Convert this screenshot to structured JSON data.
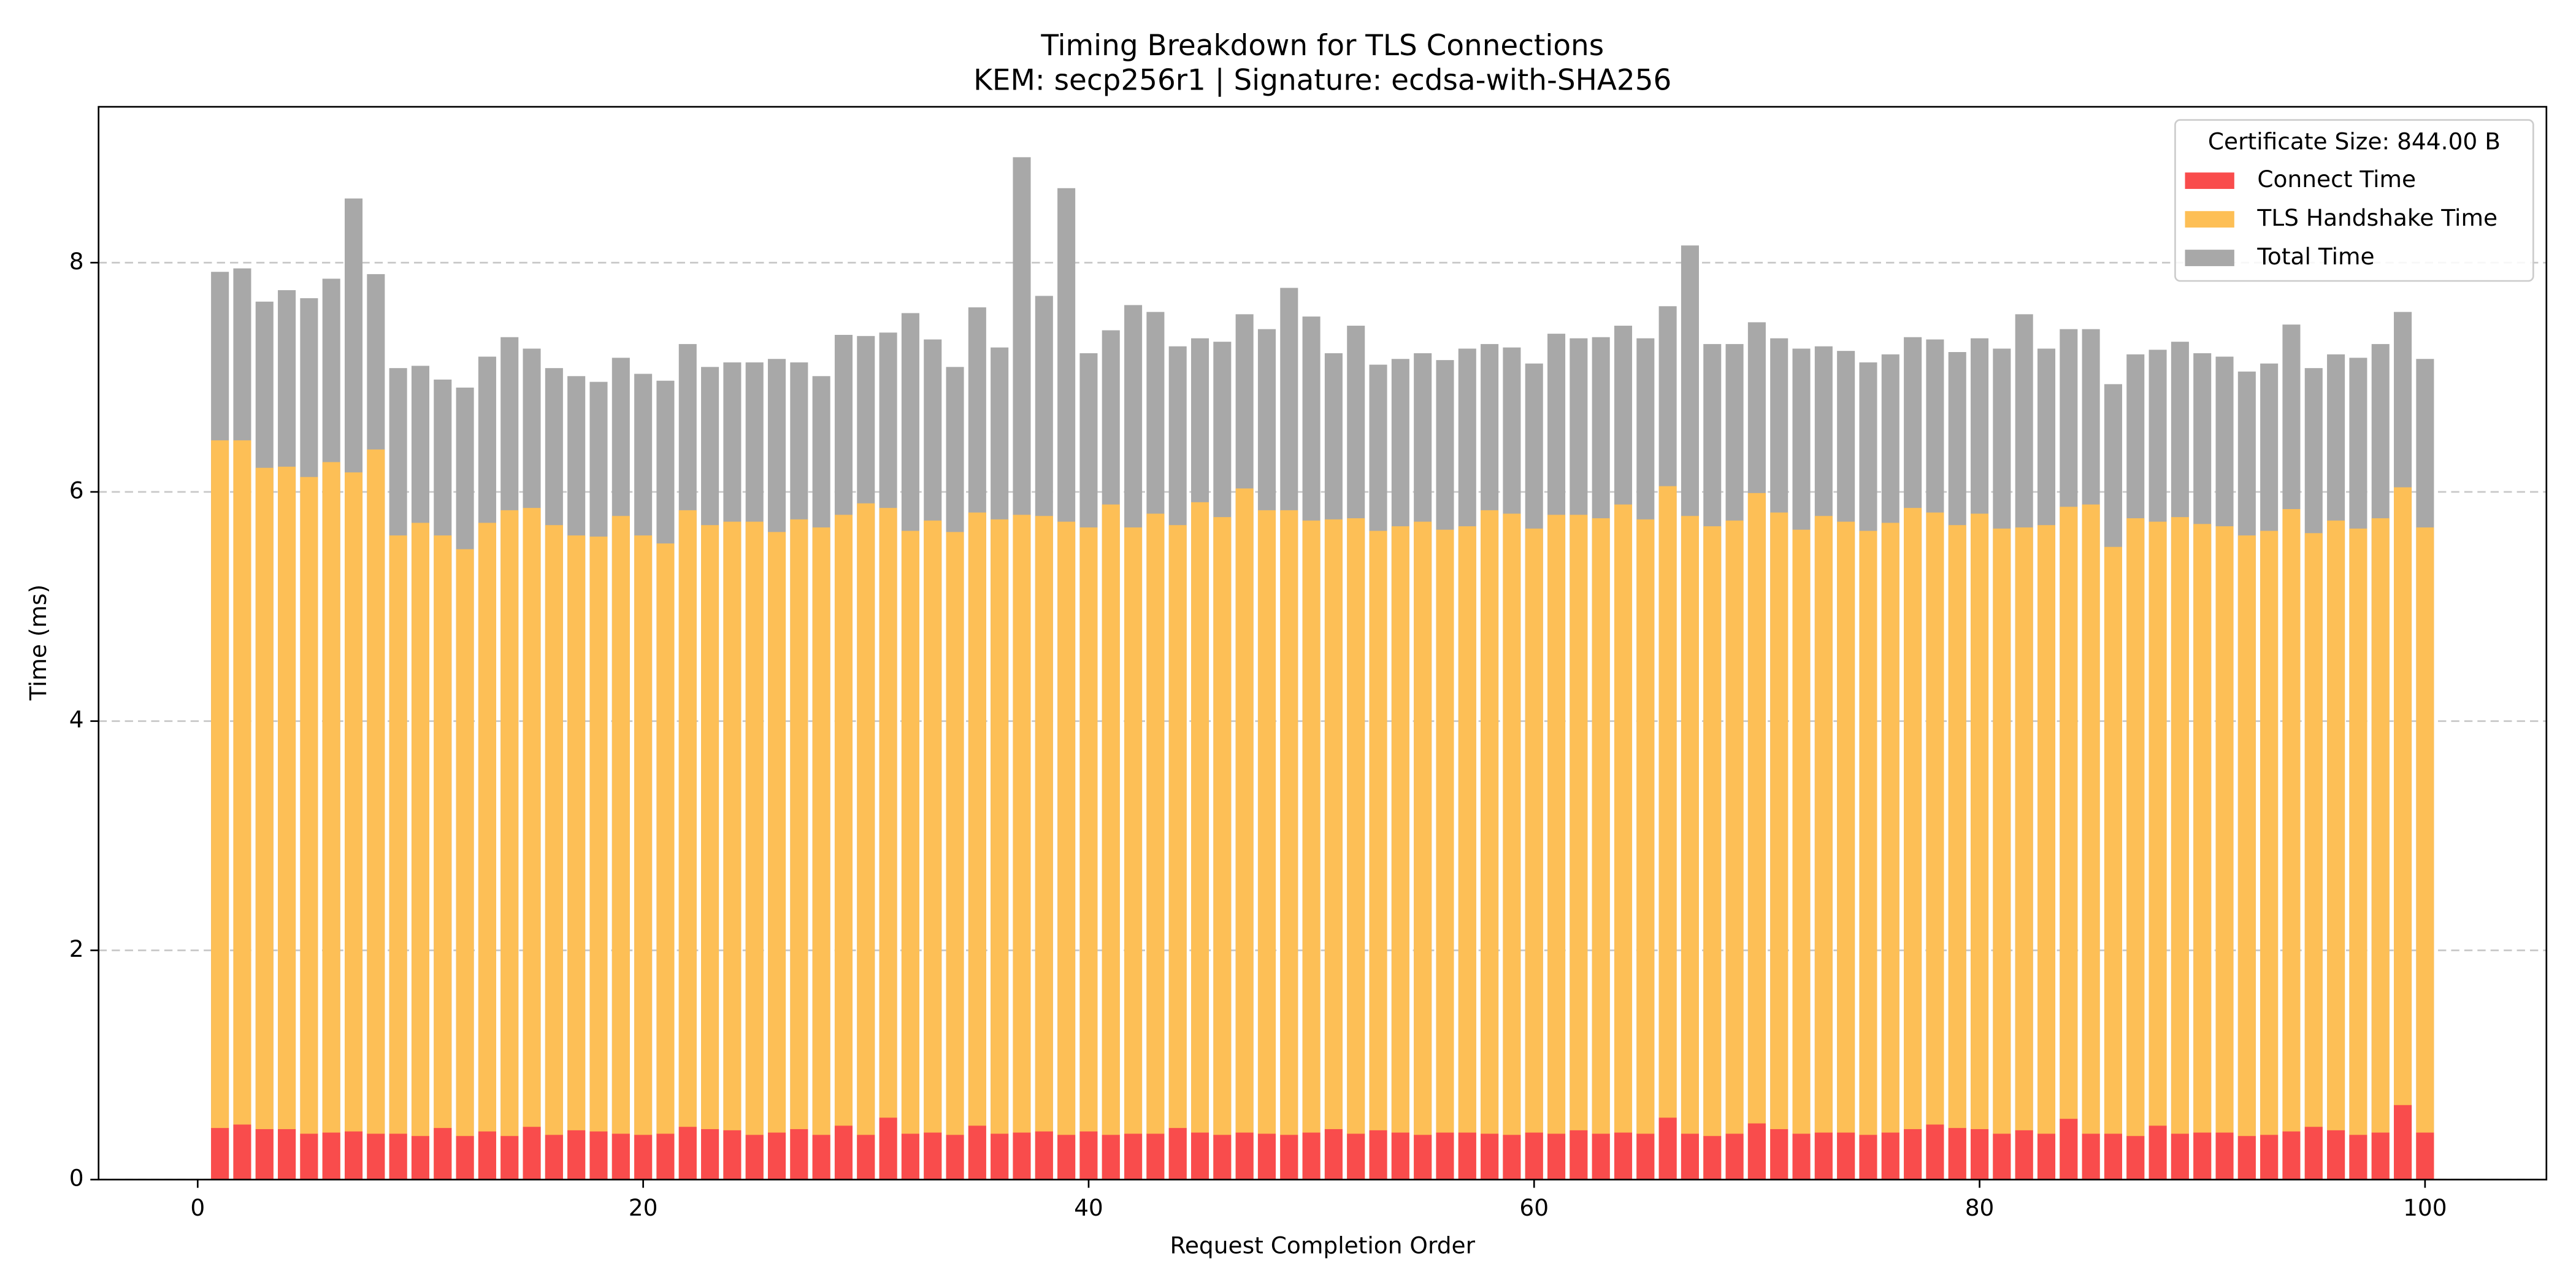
{
  "chart_data": {
    "type": "bar",
    "title": "Timing Breakdown for TLS Connections",
    "subtitle": "KEM: secp256r1 | Signature: ecdsa-with-SHA256",
    "x_label": "Request Completion Order",
    "y_label": "Time (ms)",
    "legend_title": "Certificate Size: 844.00 B",
    "legend": "upper right",
    "grid": true,
    "xlim": [
      -4.45,
      105.45
    ],
    "ylim": [
      0,
      9.36
    ],
    "xticks": [
      0,
      20,
      40,
      60,
      80,
      100
    ],
    "yticks": [
      0,
      2,
      4,
      6,
      8
    ],
    "x": [
      1,
      2,
      3,
      4,
      5,
      6,
      7,
      8,
      9,
      10,
      11,
      12,
      13,
      14,
      15,
      16,
      17,
      18,
      19,
      20,
      21,
      22,
      23,
      24,
      25,
      26,
      27,
      28,
      29,
      30,
      31,
      32,
      33,
      34,
      35,
      36,
      37,
      38,
      39,
      40,
      41,
      42,
      43,
      44,
      45,
      46,
      47,
      48,
      49,
      50,
      51,
      52,
      53,
      54,
      55,
      56,
      57,
      58,
      59,
      60,
      61,
      62,
      63,
      64,
      65,
      66,
      67,
      68,
      69,
      70,
      71,
      72,
      73,
      74,
      75,
      76,
      77,
      78,
      79,
      80,
      81,
      82,
      83,
      84,
      85,
      86,
      87,
      88,
      89,
      90,
      91,
      92,
      93,
      94,
      95,
      96,
      97,
      98,
      99,
      100
    ],
    "series": [
      {
        "name": "Connect Time",
        "color": "#f94c4c",
        "values": [
          0.45,
          0.48,
          0.44,
          0.44,
          0.4,
          0.41,
          0.42,
          0.4,
          0.4,
          0.38,
          0.45,
          0.38,
          0.42,
          0.38,
          0.46,
          0.39,
          0.43,
          0.42,
          0.4,
          0.39,
          0.4,
          0.46,
          0.44,
          0.43,
          0.39,
          0.41,
          0.44,
          0.39,
          0.47,
          0.39,
          0.54,
          0.4,
          0.41,
          0.39,
          0.47,
          0.4,
          0.41,
          0.42,
          0.39,
          0.42,
          0.39,
          0.4,
          0.4,
          0.45,
          0.41,
          0.39,
          0.41,
          0.4,
          0.39,
          0.41,
          0.44,
          0.4,
          0.43,
          0.41,
          0.39,
          0.41,
          0.41,
          0.4,
          0.39,
          0.41,
          0.4,
          0.43,
          0.4,
          0.41,
          0.4,
          0.54,
          0.4,
          0.38,
          0.4,
          0.49,
          0.44,
          0.4,
          0.41,
          0.41,
          0.39,
          0.41,
          0.44,
          0.48,
          0.45,
          0.44,
          0.4,
          0.43,
          0.4,
          0.53,
          0.4,
          0.4,
          0.38,
          0.47,
          0.4,
          0.41,
          0.41,
          0.38,
          0.39,
          0.42,
          0.46,
          0.43,
          0.39,
          0.41,
          0.65,
          0.41
        ]
      },
      {
        "name": "TLS Handshake Time",
        "color": "#fdbf56",
        "values": [
          6.45,
          6.45,
          6.21,
          6.22,
          6.13,
          6.26,
          6.17,
          6.37,
          5.62,
          5.73,
          5.62,
          5.5,
          5.73,
          5.84,
          5.86,
          5.71,
          5.62,
          5.61,
          5.79,
          5.62,
          5.55,
          5.84,
          5.71,
          5.74,
          5.74,
          5.65,
          5.76,
          5.69,
          5.8,
          5.9,
          5.86,
          5.66,
          5.75,
          5.65,
          5.82,
          5.76,
          5.8,
          5.79,
          5.74,
          5.69,
          5.89,
          5.69,
          5.81,
          5.71,
          5.91,
          5.78,
          6.03,
          5.84,
          5.84,
          5.75,
          5.76,
          5.77,
          5.66,
          5.7,
          5.74,
          5.67,
          5.7,
          5.84,
          5.81,
          5.68,
          5.8,
          5.8,
          5.77,
          5.89,
          5.76,
          6.05,
          5.79,
          5.7,
          5.75,
          5.99,
          5.82,
          5.67,
          5.79,
          5.74,
          5.66,
          5.73,
          5.86,
          5.82,
          5.71,
          5.81,
          5.68,
          5.69,
          5.71,
          5.87,
          5.89,
          5.52,
          5.77,
          5.74,
          5.78,
          5.72,
          5.7,
          5.62,
          5.66,
          5.85,
          5.64,
          5.75,
          5.68,
          5.77,
          6.04,
          5.69
        ]
      },
      {
        "name": "Total Time",
        "color": "#a8a8a8",
        "values": [
          7.92,
          7.95,
          7.66,
          7.76,
          7.69,
          7.86,
          8.56,
          7.9,
          7.08,
          7.1,
          6.98,
          6.91,
          7.18,
          7.35,
          7.25,
          7.08,
          7.01,
          6.96,
          7.17,
          7.03,
          6.97,
          7.29,
          7.09,
          7.13,
          7.13,
          7.16,
          7.13,
          7.01,
          7.37,
          7.36,
          7.39,
          7.56,
          7.33,
          7.09,
          7.61,
          7.26,
          8.92,
          7.71,
          8.65,
          7.21,
          7.41,
          7.63,
          7.57,
          7.27,
          7.34,
          7.31,
          7.55,
          7.42,
          7.78,
          7.53,
          7.21,
          7.45,
          7.11,
          7.16,
          7.21,
          7.15,
          7.25,
          7.29,
          7.26,
          7.12,
          7.38,
          7.34,
          7.35,
          7.45,
          7.34,
          7.62,
          8.15,
          7.29,
          7.29,
          7.48,
          7.34,
          7.25,
          7.27,
          7.23,
          7.13,
          7.2,
          7.35,
          7.33,
          7.22,
          7.34,
          7.25,
          7.55,
          7.25,
          7.42,
          7.42,
          6.94,
          7.2,
          7.24,
          7.31,
          7.21,
          7.18,
          7.05,
          7.12,
          7.46,
          7.08,
          7.2,
          7.17,
          7.29,
          7.57,
          7.16
        ]
      }
    ]
  }
}
